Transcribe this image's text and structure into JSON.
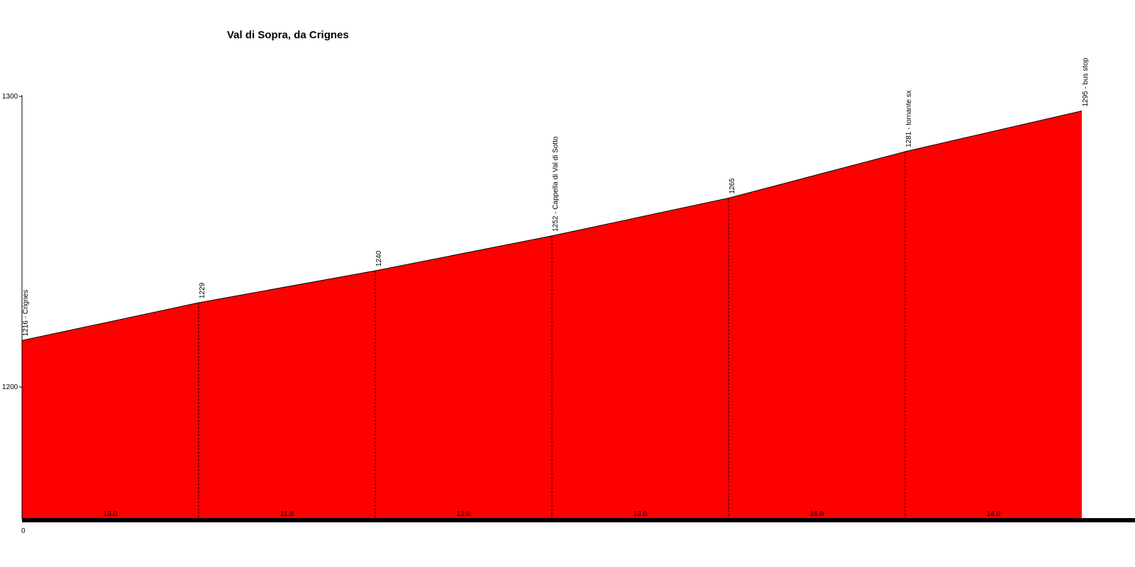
{
  "chart_data": {
    "type": "area",
    "title": "Val di Sopra, da Crignes",
    "xlabel": "",
    "ylabel": "",
    "x_tick_labels": [
      "0"
    ],
    "y_ticks": [
      1200,
      1300
    ],
    "ylim": [
      1155,
      1300
    ],
    "xlim": [
      0,
      6
    ],
    "grid": false,
    "fill_color": "#ff0000",
    "points": [
      {
        "x": 0,
        "y": 1216,
        "label": "1216 - Crignes"
      },
      {
        "x": 1,
        "y": 1229,
        "label": "1229"
      },
      {
        "x": 2,
        "y": 1240,
        "label": "1240"
      },
      {
        "x": 3,
        "y": 1252,
        "label": "1252 - Cappella di Val di Sotto"
      },
      {
        "x": 4,
        "y": 1265,
        "label": "1265"
      },
      {
        "x": 5,
        "y": 1281,
        "label": "1281 - tornante sx"
      },
      {
        "x": 6,
        "y": 1295,
        "label": "1295 - bus stop"
      }
    ],
    "segment_labels": [
      "13.0",
      "11.0",
      "12.0",
      "13.0",
      "16.0",
      "14.0"
    ]
  }
}
